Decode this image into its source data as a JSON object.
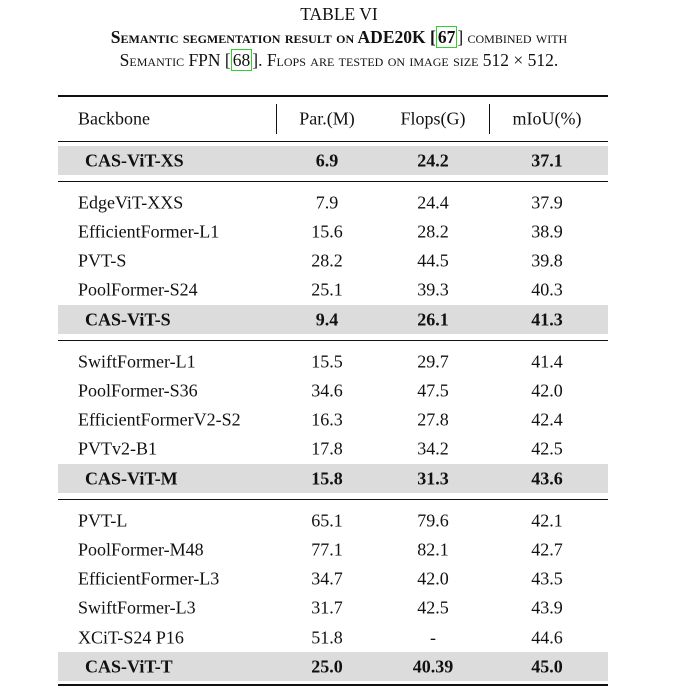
{
  "title": "TABLE VI",
  "caption": {
    "lines": [
      {
        "segments": [
          {
            "text": "Semantic segmentation result on ADE20K [",
            "bold": true
          },
          {
            "text": "67",
            "bold": true,
            "link": true
          },
          {
            "text": "] combined with"
          }
        ]
      },
      {
        "segments": [
          {
            "text": "Semantic FPN ["
          },
          {
            "text": "68",
            "link": true
          },
          {
            "text": "]. Flops are tested on image size 512 × 512."
          }
        ]
      }
    ]
  },
  "table": {
    "header": [
      "Backbone",
      "Par.(M)",
      "Flops(G)",
      "mIoU(%)"
    ],
    "groups": [
      {
        "rows": [],
        "ours": [
          "CAS-ViT-XS",
          "6.9",
          "24.2",
          "37.1"
        ]
      },
      {
        "rows": [
          [
            "EdgeViT-XXS",
            "7.9",
            "24.4",
            "37.9"
          ],
          [
            "EfficientFormer-L1",
            "15.6",
            "28.2",
            "38.9"
          ],
          [
            "PVT-S",
            "28.2",
            "44.5",
            "39.8"
          ],
          [
            "PoolFormer-S24",
            "25.1",
            "39.3",
            "40.3"
          ]
        ],
        "ours": [
          "CAS-ViT-S",
          "9.4",
          "26.1",
          "41.3"
        ]
      },
      {
        "rows": [
          [
            "SwiftFormer-L1",
            "15.5",
            "29.7",
            "41.4"
          ],
          [
            "PoolFormer-S36",
            "34.6",
            "47.5",
            "42.0"
          ],
          [
            "EfficientFormerV2-S2",
            "16.3",
            "27.8",
            "42.4"
          ],
          [
            "PVTv2-B1",
            "17.8",
            "34.2",
            "42.5"
          ]
        ],
        "ours": [
          "CAS-ViT-M",
          "15.8",
          "31.3",
          "43.6"
        ]
      },
      {
        "rows": [
          [
            "PVT-L",
            "65.1",
            "79.6",
            "42.1"
          ],
          [
            "PoolFormer-M48",
            "77.1",
            "82.1",
            "42.7"
          ],
          [
            "EfficientFormer-L3",
            "34.7",
            "42.0",
            "43.5"
          ],
          [
            "SwiftFormer-L3",
            "31.7",
            "42.5",
            "43.9"
          ],
          [
            "XCiT-S24 P16",
            "51.8",
            "-",
            "44.6"
          ]
        ],
        "ours": [
          "CAS-ViT-T",
          "25.0",
          "40.39",
          "45.0"
        ]
      }
    ]
  }
}
